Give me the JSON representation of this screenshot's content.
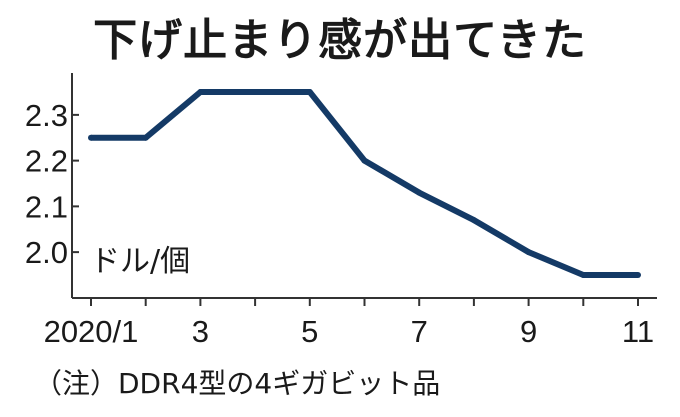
{
  "chart_data": {
    "type": "line",
    "title": "下げ止まり感が出てきた",
    "unit_label": "ドル/個",
    "footnote": "（注）DDR4型の4ギガビット品",
    "x_tick_labels": [
      "2020/1",
      "3",
      "5",
      "7",
      "9",
      "11"
    ],
    "x": [
      1,
      2,
      3,
      4,
      5,
      6,
      7,
      8,
      9,
      10,
      11
    ],
    "series": [
      {
        "values": [
          2.25,
          2.25,
          2.35,
          2.35,
          2.35,
          2.2,
          2.13,
          2.07,
          2.0,
          1.95,
          1.95
        ]
      }
    ],
    "y_ticks": [
      2.0,
      2.1,
      2.2,
      2.3
    ],
    "ylim": [
      1.9,
      2.38
    ],
    "xlim": [
      1,
      11
    ],
    "grid": false,
    "line_color": "#143a66",
    "axis_color": "#333333"
  }
}
